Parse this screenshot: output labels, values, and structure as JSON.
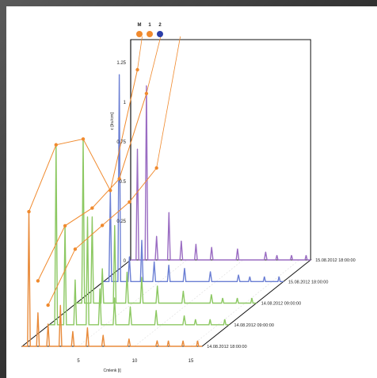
{
  "chart_data": {
    "type": "line",
    "subtype": "3d-waterfall",
    "ylabel": "c [ku/cm]",
    "xlabel": "Cmlenk [i]",
    "xticks": [
      "5",
      "10",
      "15"
    ],
    "yticks": [
      "0",
      "0.25",
      "0.5",
      "0.75",
      "1",
      "1.25"
    ],
    "ylim": [
      0,
      1.25
    ],
    "xlim": [
      0,
      16
    ],
    "series_labels": [
      {
        "label": "M",
        "color": "#f08a2e"
      },
      {
        "label": "1",
        "color": "#f08a2e"
      },
      {
        "label": "2",
        "color": "#2b3ea8"
      }
    ],
    "traces": [
      {
        "date": "14.08.2012 18:00:00",
        "color": "#e88a3a",
        "peaks": [
          {
            "x": 0.6,
            "y": 0.72
          },
          {
            "x": 1.4,
            "y": 0.18
          },
          {
            "x": 2.3,
            "y": 0.12
          },
          {
            "x": 3.4,
            "y": 0.22
          },
          {
            "x": 4.5,
            "y": 0.08
          },
          {
            "x": 5.8,
            "y": 0.1
          },
          {
            "x": 7.2,
            "y": 0.06
          },
          {
            "x": 9.5,
            "y": 0.04
          },
          {
            "x": 12.0,
            "y": 0.03
          }
        ]
      },
      {
        "date": "14.08.2012 09:00:00",
        "color": "#8cc862",
        "peaks": [
          {
            "x": 0.6,
            "y": 1.0
          },
          {
            "x": 1.4,
            "y": 0.55
          },
          {
            "x": 2.3,
            "y": 0.25
          },
          {
            "x": 3.4,
            "y": 0.6
          },
          {
            "x": 4.5,
            "y": 0.2
          },
          {
            "x": 5.8,
            "y": 0.15
          },
          {
            "x": 7.2,
            "y": 0.1
          },
          {
            "x": 9.5,
            "y": 0.08
          },
          {
            "x": 12.0,
            "y": 0.05
          }
        ]
      },
      {
        "date": "14.08.2012 09:00:00",
        "color": "#8cc862",
        "peaks": [
          {
            "x": 0.6,
            "y": 0.95
          },
          {
            "x": 1.4,
            "y": 0.5
          },
          {
            "x": 2.3,
            "y": 0.2
          },
          {
            "x": 3.4,
            "y": 0.45
          },
          {
            "x": 4.5,
            "y": 0.18
          },
          {
            "x": 5.8,
            "y": 0.15
          },
          {
            "x": 7.2,
            "y": 0.1
          },
          {
            "x": 9.5,
            "y": 0.07
          },
          {
            "x": 12.0,
            "y": 0.05
          }
        ]
      },
      {
        "date": "15.08.2012 18:00:00",
        "color": "#6b7fd4",
        "peaks": [
          {
            "x": 0.6,
            "y": 0.55
          },
          {
            "x": 1.4,
            "y": 1.25
          },
          {
            "x": 2.3,
            "y": 0.15
          },
          {
            "x": 3.4,
            "y": 0.25
          },
          {
            "x": 4.5,
            "y": 0.12
          },
          {
            "x": 5.8,
            "y": 0.1
          },
          {
            "x": 7.2,
            "y": 0.08
          },
          {
            "x": 9.5,
            "y": 0.06
          },
          {
            "x": 12.0,
            "y": 0.04
          }
        ]
      },
      {
        "date": "15.08.2012 18:00:00",
        "color": "#9a6cc2",
        "peaks": [
          {
            "x": 0.6,
            "y": 0.7
          },
          {
            "x": 1.4,
            "y": 1.1
          },
          {
            "x": 2.3,
            "y": 0.15
          },
          {
            "x": 3.4,
            "y": 0.3
          },
          {
            "x": 4.5,
            "y": 0.12
          },
          {
            "x": 5.8,
            "y": 0.1
          },
          {
            "x": 7.2,
            "y": 0.08
          },
          {
            "x": 9.5,
            "y": 0.07
          },
          {
            "x": 12.0,
            "y": 0.05
          }
        ]
      }
    ],
    "envelopes": [
      {
        "name": "M",
        "color": "#f08a2e",
        "values": [
          0.72,
          1.0,
          0.95,
          0.55,
          1.2
        ]
      },
      {
        "name": "1",
        "color": "#f08a2e",
        "values": [
          0.35,
          0.55,
          0.55,
          0.62,
          1.05
        ]
      },
      {
        "name": "2",
        "color": "#f08a2e",
        "values": [
          0.22,
          0.42,
          0.45,
          0.48,
          0.58
        ]
      }
    ],
    "grid": true
  }
}
